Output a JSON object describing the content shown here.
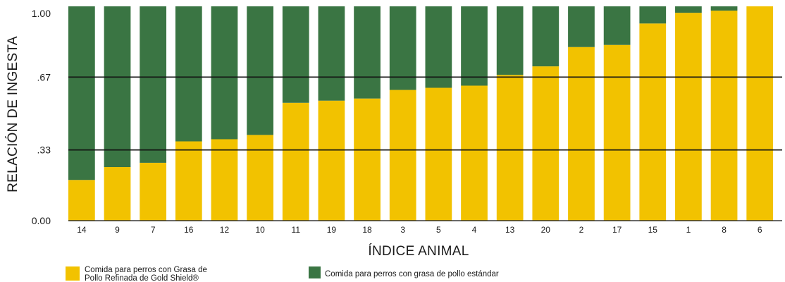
{
  "chart_data": {
    "type": "bar",
    "stacked": true,
    "normalized": true,
    "title": "",
    "xlabel": "ÍNDICE ANIMAL",
    "ylabel": "RELACIÓN DE INGESTA",
    "ylim": [
      0,
      1
    ],
    "yticks": [
      {
        "value": 0,
        "label": "0.00"
      },
      {
        "value": 0.33,
        "label": ".33"
      },
      {
        "value": 0.67,
        "label": ".67"
      },
      {
        "value": 1,
        "label": "1.00"
      }
    ],
    "gridlines": [
      0.33,
      0.67
    ],
    "categories": [
      "14",
      "9",
      "7",
      "16",
      "12",
      "10",
      "11",
      "19",
      "18",
      "3",
      "5",
      "4",
      "13",
      "20",
      "2",
      "17",
      "15",
      "1",
      "8",
      "6"
    ],
    "series": [
      {
        "name": "Comida para perros con Grasa de Pollo Refinada de Gold Shield®",
        "color": "#f2c200",
        "values": [
          0.19,
          0.25,
          0.27,
          0.37,
          0.38,
          0.4,
          0.55,
          0.56,
          0.57,
          0.61,
          0.62,
          0.63,
          0.68,
          0.72,
          0.81,
          0.82,
          0.92,
          0.97,
          0.98,
          1.0
        ]
      },
      {
        "name": "Comida para perros con grasa de pollo estándar",
        "color": "#3a7543",
        "values": [
          0.81,
          0.75,
          0.73,
          0.63,
          0.62,
          0.6,
          0.45,
          0.44,
          0.43,
          0.39,
          0.38,
          0.37,
          0.32,
          0.28,
          0.19,
          0.18,
          0.08,
          0.03,
          0.02,
          0.0
        ]
      }
    ],
    "legend": {
      "position": "bottom-left",
      "entries": [
        {
          "line1": "Comida para perros con Grasa de",
          "line2": "Pollo Refinada de Gold Shield®",
          "color": "#f2c200"
        },
        {
          "line1": "Comida para perros con grasa de pollo estándar",
          "line2": "",
          "color": "#3a7543"
        }
      ]
    }
  }
}
